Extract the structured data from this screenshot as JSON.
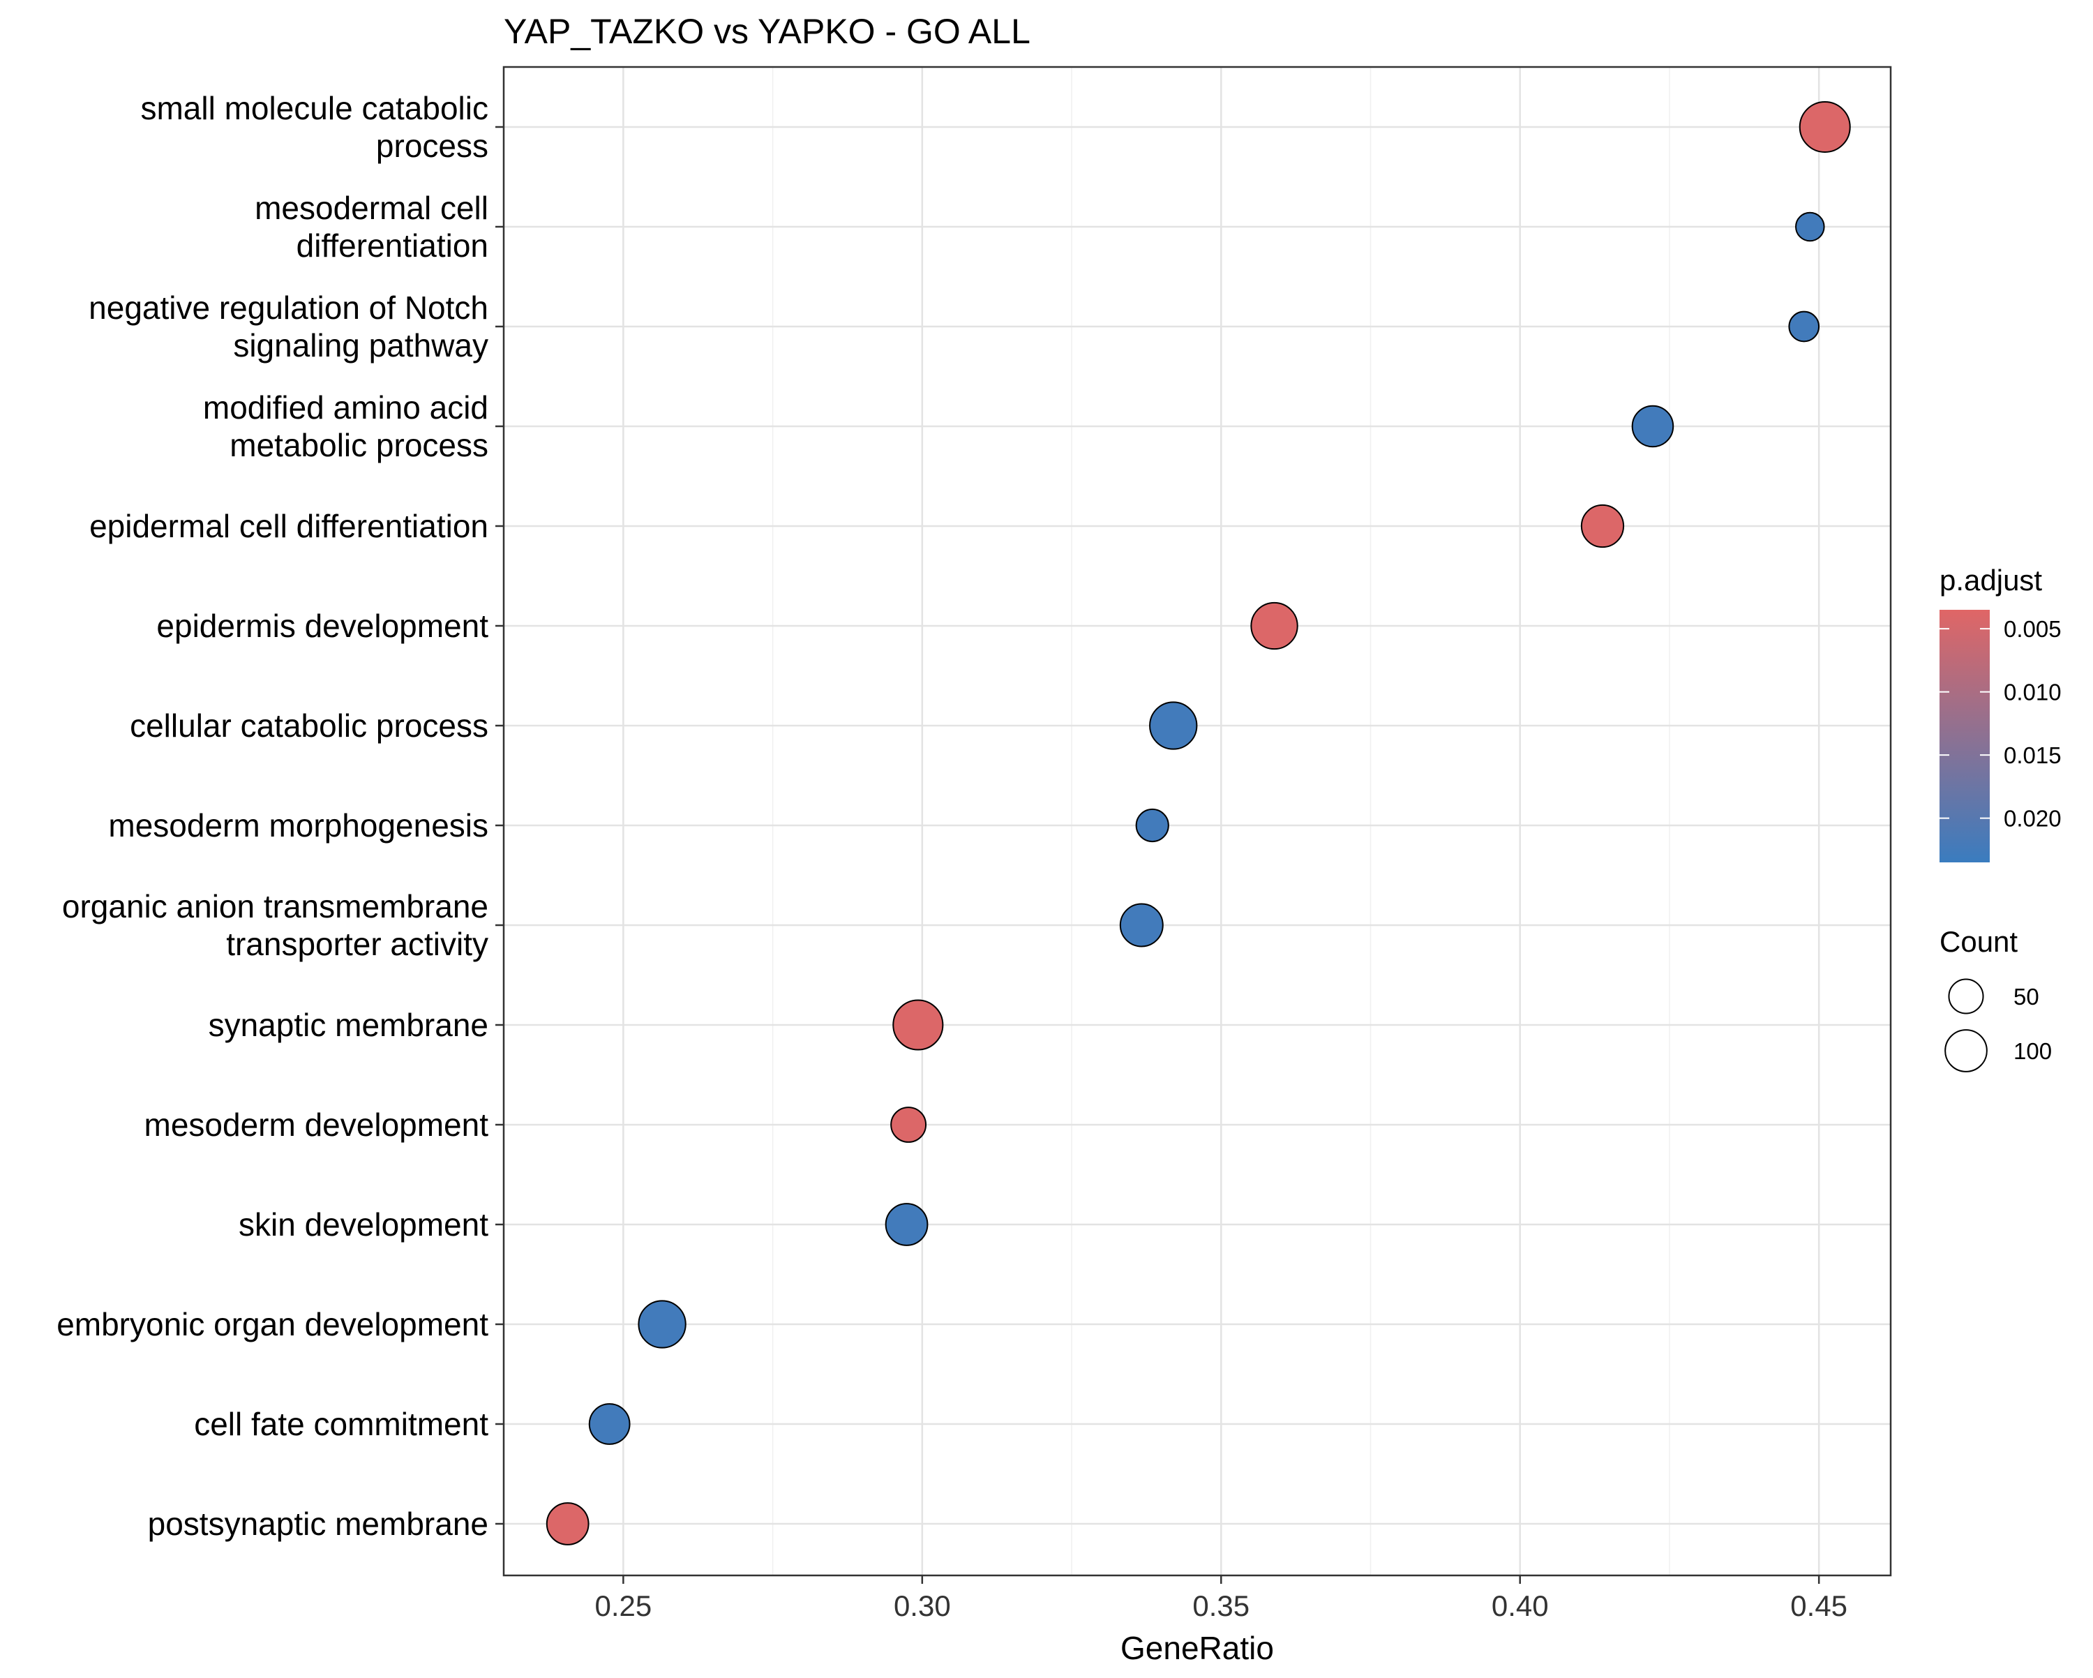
{
  "chart_data": {
    "type": "scatter",
    "title": "YAP_TAZKO vs YAPKO - GO ALL",
    "xlabel": "GeneRatio",
    "ylabel": "",
    "xlim": [
      0.23,
      0.462
    ],
    "xticks": [
      "0.25",
      "0.30",
      "0.35",
      "0.40",
      "0.45"
    ],
    "grid": true,
    "legend_position": "right",
    "color_scale": {
      "low_color": "#E06666",
      "high_color": "#3A7CBF"
    },
    "color_legend": {
      "title": "p.adjust",
      "min": 0.0035,
      "max": 0.0235,
      "ticks": [
        "0.005",
        "0.010",
        "0.015",
        "0.020"
      ]
    },
    "size_legend": {
      "title": "Count",
      "entries": [
        {
          "label": "50",
          "count": 50
        },
        {
          "label": "100",
          "count": 100
        }
      ]
    },
    "points": [
      {
        "term": "small molecule catabolic\nprocess",
        "gene_ratio": 0.451,
        "count": 130,
        "p_adjust": 0.004
      },
      {
        "term": "mesodermal cell\ndifferentiation",
        "gene_ratio": 0.4485,
        "count": 13,
        "p_adjust": 0.0225
      },
      {
        "term": "negative regulation of Notch\nsignaling pathway",
        "gene_ratio": 0.4475,
        "count": 17,
        "p_adjust": 0.0225
      },
      {
        "term": "modified amino acid\nmetabolic process",
        "gene_ratio": 0.4222,
        "count": 65,
        "p_adjust": 0.0225
      },
      {
        "term": "epidermal cell differentiation",
        "gene_ratio": 0.4138,
        "count": 72,
        "p_adjust": 0.004
      },
      {
        "term": "epidermis development",
        "gene_ratio": 0.3589,
        "count": 100,
        "p_adjust": 0.004
      },
      {
        "term": "cellular catabolic process",
        "gene_ratio": 0.342,
        "count": 105,
        "p_adjust": 0.0225
      },
      {
        "term": "mesoderm morphogenesis",
        "gene_ratio": 0.3385,
        "count": 25,
        "p_adjust": 0.0225
      },
      {
        "term": "organic anion transmembrane\ntransporter activity",
        "gene_ratio": 0.3367,
        "count": 75,
        "p_adjust": 0.0225
      },
      {
        "term": "synaptic membrane",
        "gene_ratio": 0.2993,
        "count": 125,
        "p_adjust": 0.004
      },
      {
        "term": "mesoderm development",
        "gene_ratio": 0.2977,
        "count": 35,
        "p_adjust": 0.004
      },
      {
        "term": "skin development",
        "gene_ratio": 0.2974,
        "count": 70,
        "p_adjust": 0.0225
      },
      {
        "term": "embryonic organ development",
        "gene_ratio": 0.2565,
        "count": 105,
        "p_adjust": 0.0225
      },
      {
        "term": "cell fate commitment",
        "gene_ratio": 0.2477,
        "count": 62,
        "p_adjust": 0.0225
      },
      {
        "term": "postsynaptic membrane",
        "gene_ratio": 0.2407,
        "count": 70,
        "p_adjust": 0.004
      }
    ]
  }
}
